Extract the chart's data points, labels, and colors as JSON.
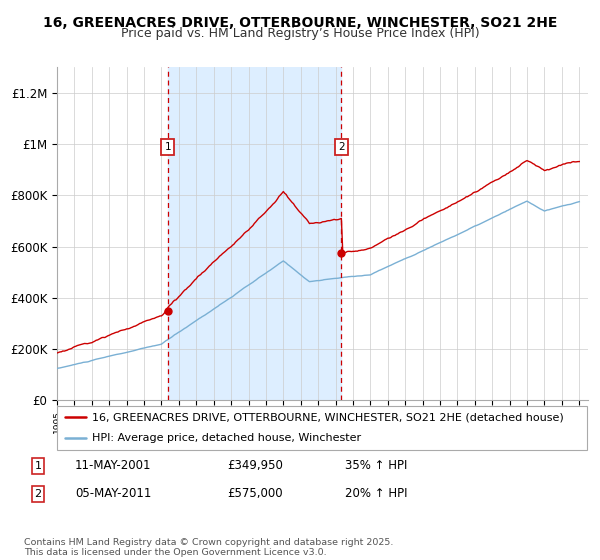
{
  "title_line1": "16, GREENACRES DRIVE, OTTERBOURNE, WINCHESTER, SO21 2HE",
  "title_line2": "Price paid vs. HM Land Registry’s House Price Index (HPI)",
  "ylim": [
    0,
    1300000
  ],
  "xlim_start": 1995.0,
  "xlim_end": 2025.5,
  "yticks": [
    0,
    200000,
    400000,
    600000,
    800000,
    1000000,
    1200000
  ],
  "ytick_labels": [
    "£0",
    "£200K",
    "£400K",
    "£600K",
    "£800K",
    "£1M",
    "£1.2M"
  ],
  "sale1_year": 2001.36,
  "sale1_price": 349950,
  "sale1_label": "1",
  "sale1_date": "11-MAY-2001",
  "sale1_pct": "35% ↑ HPI",
  "sale2_year": 2011.34,
  "sale2_price": 575000,
  "sale2_label": "2",
  "sale2_date": "05-MAY-2011",
  "sale2_pct": "20% ↑ HPI",
  "red_line_color": "#cc0000",
  "blue_line_color": "#7ab0d4",
  "shade_color": "#ddeeff",
  "vline_color": "#cc0000",
  "background_color": "#ffffff",
  "grid_color": "#cccccc",
  "legend_line1": "16, GREENACRES DRIVE, OTTERBOURNE, WINCHESTER, SO21 2HE (detached house)",
  "legend_line2": "HPI: Average price, detached house, Winchester",
  "footnote": "Contains HM Land Registry data © Crown copyright and database right 2025.\nThis data is licensed under the Open Government Licence v3.0.",
  "title_fontsize": 10,
  "subtitle_fontsize": 9,
  "axis_fontsize": 8.5,
  "legend_fontsize": 8
}
